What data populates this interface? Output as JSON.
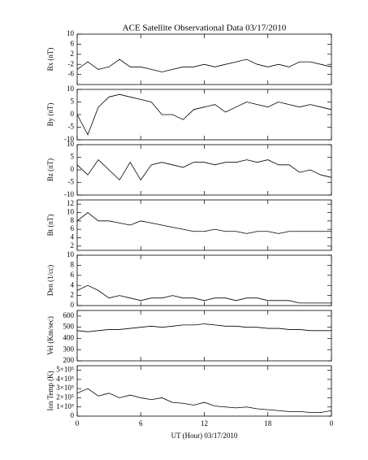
{
  "chart_data": [
    {
      "type": "line",
      "title": "ACE Satellite Observational Data   03/17/2010",
      "ylabel": "Bx (nT)",
      "color": "#000000",
      "x": [
        0,
        1,
        2,
        3,
        4,
        5,
        6,
        7,
        8,
        9,
        10,
        11,
        12,
        13,
        14,
        15,
        16,
        17,
        18,
        19,
        20,
        21,
        22,
        23,
        24
      ],
      "values": [
        -4,
        -1,
        -4,
        -3,
        0,
        -3,
        -3,
        -4,
        -5,
        -4,
        -3,
        -3,
        -2,
        -3,
        -2,
        -1,
        0,
        -2,
        -3,
        -2,
        -3,
        -1,
        -1,
        -2,
        -3
      ],
      "xlim": [
        0,
        24
      ],
      "ylim": [
        -10,
        10
      ],
      "yticks": [
        10,
        6,
        2,
        -2,
        -6
      ]
    },
    {
      "type": "line",
      "ylabel": "By (nT)",
      "color": "#000000",
      "x": [
        0,
        1,
        2,
        3,
        4,
        5,
        6,
        7,
        8,
        9,
        10,
        11,
        12,
        13,
        14,
        15,
        16,
        17,
        18,
        19,
        20,
        21,
        22,
        23,
        24
      ],
      "values": [
        0,
        -8,
        3,
        7,
        8,
        7,
        6,
        5,
        0,
        0,
        -2,
        2,
        3,
        4,
        1,
        3,
        5,
        4,
        3,
        5,
        4,
        3,
        4,
        3,
        2
      ],
      "xlim": [
        0,
        24
      ],
      "ylim": [
        -10,
        10
      ],
      "yticks": [
        10,
        5,
        0,
        -5,
        -10
      ]
    },
    {
      "type": "line",
      "ylabel": "Bz (nT)",
      "color": "#000000",
      "x": [
        0,
        1,
        2,
        3,
        4,
        5,
        6,
        7,
        8,
        9,
        10,
        11,
        12,
        13,
        14,
        15,
        16,
        17,
        18,
        19,
        20,
        21,
        22,
        23,
        24
      ],
      "values": [
        2,
        -2,
        4,
        0,
        -4,
        3,
        -4,
        2,
        3,
        2,
        1,
        3,
        3,
        2,
        3,
        3,
        4,
        3,
        4,
        2,
        2,
        -1,
        0,
        -2,
        -3
      ],
      "xlim": [
        0,
        24
      ],
      "ylim": [
        -10,
        10
      ],
      "yticks": [
        10,
        5,
        0,
        -5,
        -10
      ]
    },
    {
      "type": "line",
      "ylabel": "Bt (nT)",
      "color": "#000000",
      "x": [
        0,
        1,
        2,
        3,
        4,
        5,
        6,
        7,
        8,
        9,
        10,
        11,
        12,
        13,
        14,
        15,
        16,
        17,
        18,
        19,
        20,
        21,
        22,
        23,
        24
      ],
      "values": [
        8,
        10,
        8,
        8,
        7.5,
        7,
        8,
        7.5,
        7,
        6.5,
        6,
        5.5,
        5.5,
        6,
        5.5,
        5.5,
        5,
        5.5,
        5.5,
        5,
        5.5,
        5.5,
        5.5,
        5.5,
        5.5
      ],
      "xlim": [
        0,
        24
      ],
      "ylim": [
        1,
        13
      ],
      "yticks": [
        12,
        10,
        8,
        6,
        4,
        2
      ]
    },
    {
      "type": "line",
      "ylabel": "Den (1/cc)",
      "color": "#000000",
      "x": [
        0,
        1,
        2,
        3,
        4,
        5,
        6,
        7,
        8,
        9,
        10,
        11,
        12,
        13,
        14,
        15,
        16,
        17,
        18,
        19,
        20,
        21,
        22,
        23,
        24
      ],
      "values": [
        3,
        4,
        3,
        1.5,
        2,
        1.5,
        1,
        1.5,
        1.5,
        2,
        1.5,
        1.5,
        1,
        1.5,
        1.5,
        1,
        1.5,
        1.5,
        1,
        1,
        1,
        0.5,
        0.5,
        0.5,
        0.5
      ],
      "xlim": [
        0,
        24
      ],
      "ylim": [
        0,
        10
      ],
      "yticks": [
        10,
        8,
        6,
        4,
        2,
        0
      ]
    },
    {
      "type": "line",
      "ylabel": "Vel (Km/sec)",
      "color": "#000000",
      "x": [
        0,
        1,
        2,
        3,
        4,
        5,
        6,
        7,
        8,
        9,
        10,
        11,
        12,
        13,
        14,
        15,
        16,
        17,
        18,
        19,
        20,
        21,
        22,
        23,
        24
      ],
      "values": [
        470,
        460,
        470,
        480,
        480,
        490,
        500,
        510,
        500,
        510,
        520,
        520,
        530,
        520,
        510,
        510,
        500,
        500,
        490,
        490,
        480,
        480,
        470,
        470,
        470
      ],
      "xlim": [
        0,
        24
      ],
      "ylim": [
        200,
        650
      ],
      "yticks": [
        600,
        500,
        400,
        300,
        200
      ]
    },
    {
      "type": "line",
      "ylabel": "Ion Temp (K)",
      "xlabel": "UT (Hour)  03/17/2010",
      "color": "#000000",
      "x": [
        0,
        1,
        2,
        3,
        4,
        5,
        6,
        7,
        8,
        9,
        10,
        11,
        12,
        13,
        14,
        15,
        16,
        17,
        18,
        19,
        20,
        21,
        22,
        23,
        24
      ],
      "values": [
        250000,
        300000,
        220000,
        250000,
        200000,
        230000,
        200000,
        180000,
        200000,
        150000,
        140000,
        120000,
        150000,
        110000,
        100000,
        90000,
        100000,
        80000,
        70000,
        60000,
        50000,
        50000,
        40000,
        40000,
        60000
      ],
      "xlim": [
        0,
        24
      ],
      "ylim": [
        0,
        550000
      ],
      "yticks": [
        {
          "value": 500000,
          "label": "5×10⁵"
        },
        {
          "value": 400000,
          "label": "4×10⁵"
        },
        {
          "value": 300000,
          "label": "3×10⁵"
        },
        {
          "value": 200000,
          "label": "2×10⁵"
        },
        {
          "value": 100000,
          "label": "1×10⁵"
        },
        0
      ],
      "xticks": [
        0,
        6,
        12,
        18,
        {
          "value": 24,
          "label": "0"
        }
      ]
    }
  ]
}
